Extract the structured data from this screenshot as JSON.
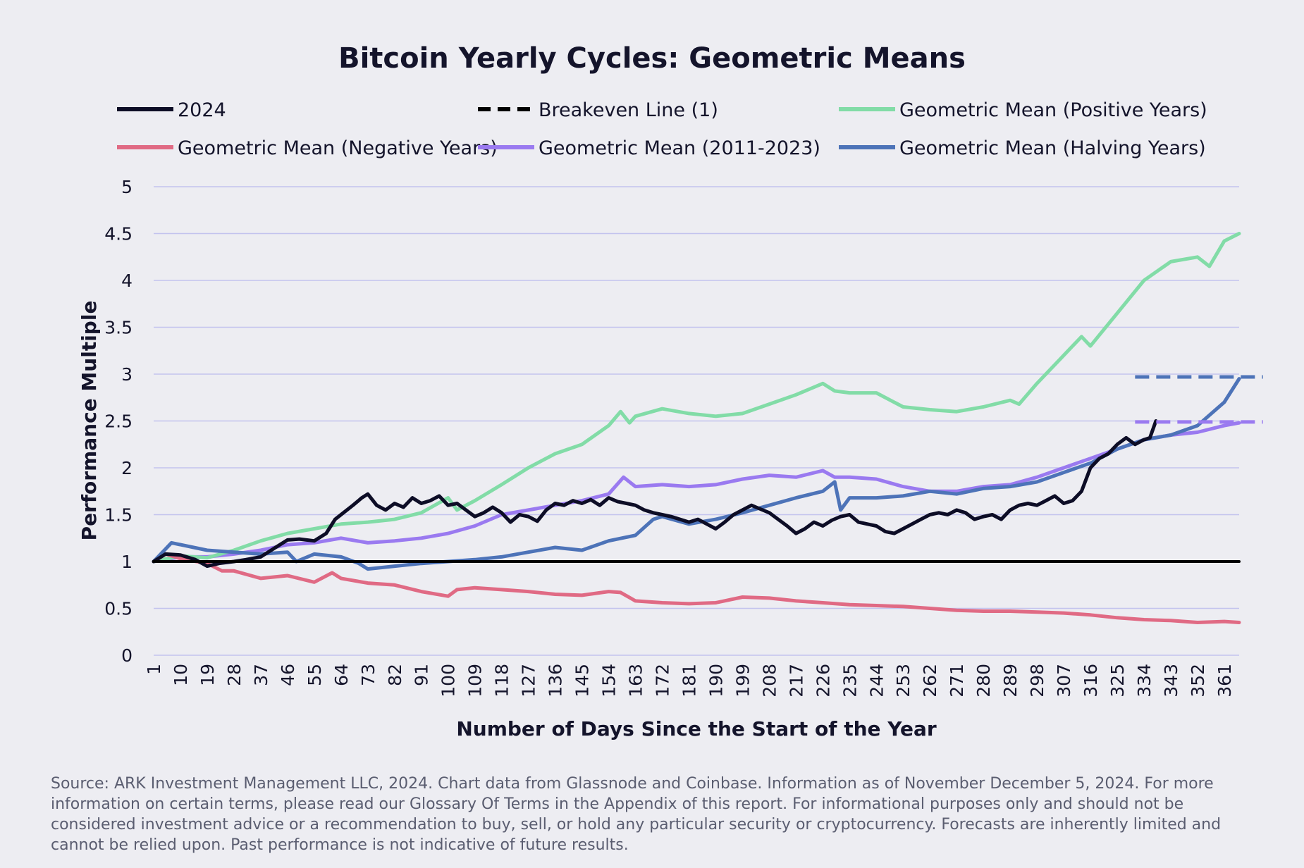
{
  "chart_data": {
    "type": "line",
    "title": "Bitcoin Yearly Cycles: Geometric Means",
    "xlabel": "Number of Days Since the Start of the Year",
    "ylabel": "Performance Multiple",
    "xlim": [
      1,
      366
    ],
    "ylim": [
      0,
      5
    ],
    "y_ticks": [
      "0",
      "0.5",
      "1",
      "1.5",
      "2",
      "2.5",
      "3",
      "3.5",
      "4",
      "4.5",
      "5"
    ],
    "x_ticks": [
      "1",
      "10",
      "19",
      "28",
      "37",
      "46",
      "55",
      "64",
      "73",
      "82",
      "91",
      "100",
      "109",
      "118",
      "127",
      "136",
      "145",
      "154",
      "163",
      "172",
      "181",
      "190",
      "199",
      "208",
      "217",
      "226",
      "235",
      "244",
      "253",
      "262",
      "271",
      "280",
      "289",
      "298",
      "307",
      "316",
      "325",
      "334",
      "343",
      "352",
      "361"
    ],
    "grid": true,
    "legend_position": "top",
    "series": [
      {
        "name": "2024",
        "color": "#0d0d26",
        "style": "solid",
        "x": [
          1,
          5,
          10,
          15,
          19,
          23,
          28,
          32,
          37,
          42,
          46,
          50,
          55,
          59,
          62,
          64,
          68,
          71,
          73,
          76,
          79,
          82,
          85,
          88,
          91,
          94,
          97,
          100,
          103,
          106,
          109,
          112,
          115,
          118,
          121,
          124,
          127,
          130,
          133,
          136,
          139,
          142,
          145,
          148,
          151,
          154,
          157,
          160,
          163,
          166,
          169,
          172,
          175,
          178,
          181,
          184,
          187,
          190,
          193,
          196,
          199,
          202,
          205,
          208,
          211,
          214,
          217,
          220,
          223,
          226,
          229,
          232,
          235,
          238,
          241,
          244,
          247,
          250,
          253,
          256,
          259,
          262,
          265,
          268,
          271,
          274,
          277,
          280,
          283,
          286,
          289,
          292,
          295,
          298,
          301,
          304,
          307,
          310,
          313,
          316,
          319,
          322,
          325,
          328,
          331,
          334,
          336,
          338
        ],
        "y": [
          1.0,
          1.08,
          1.07,
          1.02,
          0.95,
          0.98,
          1.0,
          1.02,
          1.05,
          1.15,
          1.23,
          1.24,
          1.22,
          1.3,
          1.45,
          1.5,
          1.6,
          1.68,
          1.72,
          1.6,
          1.55,
          1.62,
          1.58,
          1.68,
          1.62,
          1.65,
          1.7,
          1.6,
          1.62,
          1.55,
          1.48,
          1.52,
          1.58,
          1.52,
          1.42,
          1.5,
          1.48,
          1.43,
          1.55,
          1.62,
          1.6,
          1.65,
          1.62,
          1.66,
          1.6,
          1.68,
          1.64,
          1.62,
          1.6,
          1.55,
          1.52,
          1.5,
          1.48,
          1.45,
          1.42,
          1.45,
          1.4,
          1.35,
          1.42,
          1.5,
          1.55,
          1.6,
          1.56,
          1.52,
          1.45,
          1.38,
          1.3,
          1.35,
          1.42,
          1.38,
          1.44,
          1.48,
          1.5,
          1.42,
          1.4,
          1.38,
          1.32,
          1.3,
          1.35,
          1.4,
          1.45,
          1.5,
          1.52,
          1.5,
          1.55,
          1.52,
          1.45,
          1.48,
          1.5,
          1.45,
          1.55,
          1.6,
          1.62,
          1.6,
          1.65,
          1.7,
          1.62,
          1.65,
          1.75,
          2.0,
          2.1,
          2.15,
          2.25,
          2.32,
          2.25,
          2.3,
          2.32,
          2.5
        ]
      },
      {
        "name": "Breakeven Line (1)",
        "color": "#000000",
        "style": "dashed",
        "x": [
          1,
          366
        ],
        "y": [
          1,
          1
        ]
      },
      {
        "name": "Geometric Mean (Positive Years)",
        "color": "#82dca7",
        "style": "solid",
        "x": [
          1,
          10,
          19,
          28,
          37,
          46,
          55,
          64,
          73,
          82,
          91,
          100,
          103,
          109,
          118,
          127,
          136,
          145,
          154,
          158,
          161,
          163,
          172,
          181,
          190,
          199,
          208,
          217,
          226,
          230,
          235,
          244,
          253,
          262,
          271,
          280,
          289,
          292,
          298,
          307,
          313,
          316,
          325,
          334,
          343,
          352,
          356,
          361,
          366
        ],
        "y": [
          1.0,
          1.06,
          1.04,
          1.12,
          1.22,
          1.3,
          1.35,
          1.4,
          1.42,
          1.45,
          1.52,
          1.68,
          1.55,
          1.65,
          1.82,
          2.0,
          2.15,
          2.25,
          2.45,
          2.6,
          2.48,
          2.55,
          2.63,
          2.58,
          2.55,
          2.58,
          2.68,
          2.78,
          2.9,
          2.82,
          2.8,
          2.8,
          2.65,
          2.62,
          2.6,
          2.65,
          2.72,
          2.68,
          2.9,
          3.2,
          3.4,
          3.3,
          3.65,
          4.0,
          4.2,
          4.25,
          4.15,
          4.42,
          4.5
        ]
      },
      {
        "name": "Geometric Mean (Negative Years)",
        "color": "#e06a84",
        "style": "solid",
        "x": [
          1,
          5,
          10,
          19,
          24,
          28,
          37,
          46,
          55,
          61,
          64,
          73,
          82,
          91,
          100,
          103,
          109,
          118,
          127,
          136,
          145,
          154,
          158,
          163,
          172,
          181,
          190,
          199,
          208,
          217,
          226,
          235,
          244,
          253,
          262,
          271,
          280,
          289,
          298,
          307,
          316,
          325,
          334,
          343,
          352,
          361,
          366
        ],
        "y": [
          1.0,
          1.08,
          1.03,
          0.98,
          0.9,
          0.9,
          0.82,
          0.85,
          0.78,
          0.88,
          0.82,
          0.77,
          0.75,
          0.68,
          0.63,
          0.7,
          0.72,
          0.7,
          0.68,
          0.65,
          0.64,
          0.68,
          0.67,
          0.58,
          0.56,
          0.55,
          0.56,
          0.62,
          0.61,
          0.58,
          0.56,
          0.54,
          0.53,
          0.52,
          0.5,
          0.48,
          0.47,
          0.47,
          0.46,
          0.45,
          0.43,
          0.4,
          0.38,
          0.37,
          0.35,
          0.36,
          0.35
        ]
      },
      {
        "name": "Geometric Mean (2011-2023)",
        "color": "#9a7af0",
        "style": "solid",
        "x": [
          1,
          10,
          19,
          28,
          37,
          46,
          55,
          64,
          73,
          82,
          91,
          100,
          109,
          118,
          127,
          136,
          145,
          154,
          159,
          163,
          172,
          181,
          190,
          199,
          208,
          217,
          226,
          230,
          235,
          244,
          253,
          262,
          271,
          280,
          289,
          298,
          307,
          316,
          325,
          334,
          343,
          352,
          361,
          366
        ],
        "y": [
          1.0,
          1.05,
          1.05,
          1.08,
          1.12,
          1.18,
          1.2,
          1.25,
          1.2,
          1.22,
          1.25,
          1.3,
          1.38,
          1.5,
          1.55,
          1.6,
          1.65,
          1.72,
          1.9,
          1.8,
          1.82,
          1.8,
          1.82,
          1.88,
          1.92,
          1.9,
          1.97,
          1.9,
          1.9,
          1.88,
          1.8,
          1.75,
          1.75,
          1.8,
          1.82,
          1.9,
          2.0,
          2.1,
          2.2,
          2.3,
          2.35,
          2.38,
          2.45,
          2.48
        ]
      },
      {
        "name": "Geometric Mean (Halving Years)",
        "color": "#4d73b8",
        "style": "solid",
        "x": [
          1,
          7,
          10,
          19,
          28,
          37,
          46,
          49,
          55,
          64,
          70,
          73,
          82,
          91,
          100,
          109,
          118,
          127,
          136,
          145,
          154,
          163,
          169,
          172,
          181,
          190,
          199,
          208,
          217,
          226,
          230,
          232,
          235,
          244,
          253,
          262,
          271,
          280,
          289,
          298,
          307,
          316,
          325,
          334,
          343,
          352,
          361,
          366
        ],
        "y": [
          1.0,
          1.2,
          1.18,
          1.12,
          1.1,
          1.08,
          1.1,
          1.0,
          1.08,
          1.05,
          0.98,
          0.92,
          0.95,
          0.98,
          1.0,
          1.02,
          1.05,
          1.1,
          1.15,
          1.12,
          1.22,
          1.28,
          1.45,
          1.48,
          1.4,
          1.45,
          1.52,
          1.6,
          1.68,
          1.75,
          1.85,
          1.55,
          1.68,
          1.68,
          1.7,
          1.75,
          1.72,
          1.78,
          1.8,
          1.85,
          1.95,
          2.05,
          2.2,
          2.3,
          2.35,
          2.45,
          2.7,
          2.95
        ]
      }
    ],
    "annotations": [
      {
        "type": "dashed-marker",
        "series": "Geometric Mean (Halving Years)",
        "y": 2.97,
        "x_from": 331,
        "x_to": 374
      },
      {
        "type": "dashed-marker",
        "series": "Geometric Mean (2011-2023)",
        "y": 2.49,
        "x_from": 331,
        "x_to": 374
      }
    ]
  },
  "footnote": "Source: ARK Investment Management LLC, 2024. Chart data from Glassnode and Coinbase. Information as of November December 5, 2024. For more information on certain terms, please read our Glossary Of Terms in the Appendix of this report. For informational purposes only and should not be considered investment advice or a recommendation to buy, sell, or hold any particular security or cryptocurrency. Forecasts are inherently limited and cannot be relied upon. Past performance is not indicative of future results."
}
